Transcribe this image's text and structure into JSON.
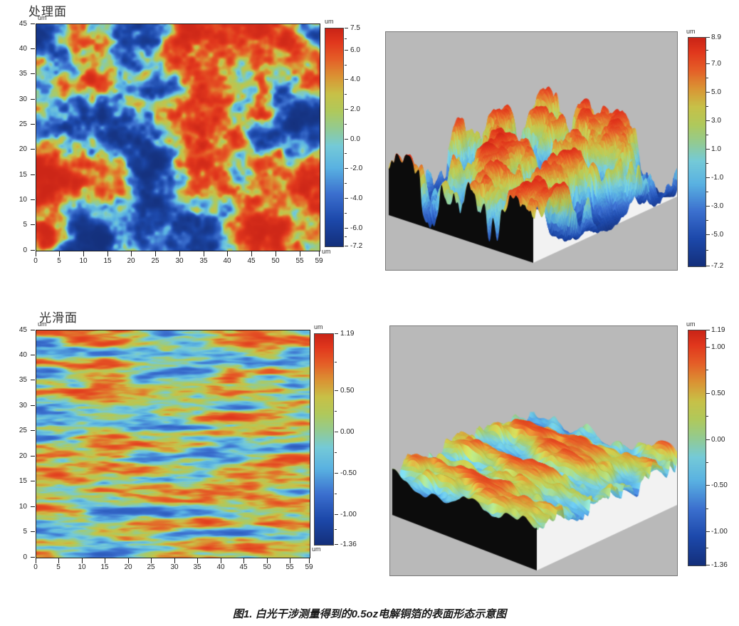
{
  "figure": {
    "caption": "图1. 白光干涉测量得到的0.5oz电解铜箔的表面形态示意图"
  },
  "labels": {
    "treated": "处理面",
    "smooth": "光滑面"
  },
  "units": {
    "um": "um"
  },
  "palette": {
    "stops": [
      {
        "t": 0.0,
        "c": "#14307c"
      },
      {
        "t": 0.12,
        "c": "#1d49ab"
      },
      {
        "t": 0.24,
        "c": "#3c70cf"
      },
      {
        "t": 0.36,
        "c": "#5ab2e2"
      },
      {
        "t": 0.46,
        "c": "#75cad8"
      },
      {
        "t": 0.54,
        "c": "#93cb93"
      },
      {
        "t": 0.62,
        "c": "#b0c95c"
      },
      {
        "t": 0.7,
        "c": "#c8c148"
      },
      {
        "t": 0.78,
        "c": "#db9434"
      },
      {
        "t": 0.86,
        "c": "#e55f28"
      },
      {
        "t": 0.94,
        "c": "#e1371d"
      },
      {
        "t": 1.0,
        "c": "#cb2517"
      }
    ],
    "panel_background": "#b9b9b9",
    "block_front_face": "#0c0c0c",
    "block_side_face": "#f2f2f2"
  },
  "axes_2d": {
    "x_tick_labels": [
      "0",
      "5",
      "10",
      "15",
      "20",
      "25",
      "30",
      "35",
      "40",
      "45",
      "50",
      "55",
      "59"
    ],
    "y_tick_labels": [
      "45",
      "40",
      "35",
      "30",
      "25",
      "20",
      "15",
      "10",
      "5",
      "0"
    ],
    "x_max": 59,
    "y_max": 45
  },
  "colorbars": {
    "treated_2d": {
      "unit": "um",
      "max": 7.5,
      "min": -7.2,
      "labels": [
        "7.5",
        "6.0",
        "4.0",
        "2.0",
        "0.0",
        "-2.0",
        "-4.0",
        "-6.0",
        "-7.2"
      ]
    },
    "treated_3d": {
      "unit": "um",
      "max": 8.9,
      "min": -7.2,
      "labels": [
        "8.9",
        "7.0",
        "5.0",
        "3.0",
        "1.0",
        "-1.0",
        "-3.0",
        "-5.0",
        "-7.2"
      ]
    },
    "smooth_2d": {
      "unit": "um",
      "max": 1.19,
      "min": -1.36,
      "labels": [
        "1.19",
        "0.50",
        "0.00",
        "-0.50",
        "-1.00",
        "-1.36"
      ]
    },
    "smooth_3d": {
      "unit": "um",
      "max": 1.19,
      "min": -1.36,
      "labels": [
        "1.19",
        "1.00",
        "0.50",
        "0.00",
        "-0.50",
        "-1.00",
        "-1.36"
      ]
    }
  },
  "chart_data": [
    {
      "id": "treated-2d-heightmap",
      "type": "heatmap",
      "title": "处理面",
      "x_unit": "um",
      "y_unit": "um",
      "z_unit": "um",
      "x_range": [
        0,
        59
      ],
      "y_range": [
        0,
        45
      ],
      "z_range": [
        -7.2,
        7.5
      ],
      "x_ticks": [
        0,
        5,
        10,
        15,
        20,
        25,
        30,
        35,
        40,
        45,
        50,
        55,
        59
      ],
      "y_ticks": [
        0,
        5,
        10,
        15,
        20,
        25,
        30,
        35,
        40,
        45
      ],
      "colorbar_ticks": [
        7.5,
        6.0,
        4.0,
        2.0,
        0.0,
        -2.0,
        -4.0,
        -6.0,
        -7.2
      ],
      "appearance": "isotropic mottled topography: flat red plateaus around +4..+7.5 um ringed by yellow-green, over cyan mid-levels and deep blue pits of -2..-7 um"
    },
    {
      "id": "treated-3d-surface",
      "type": "surface",
      "z_unit": "um",
      "z_range": [
        -7.2,
        8.9
      ],
      "colorbar_ticks": [
        8.9,
        7.0,
        5.0,
        3.0,
        1.0,
        -1.0,
        -3.0,
        -5.0,
        -7.2
      ],
      "appearance": "rough oblique 3D relief with steep red-topped mesas and deep blue valleys; black front cross-section face, white right face, gray background"
    },
    {
      "id": "smooth-2d-heightmap",
      "type": "heatmap",
      "title": "光滑面",
      "x_unit": "um",
      "y_unit": "um",
      "z_unit": "um",
      "x_range": [
        0,
        59
      ],
      "y_range": [
        0,
        45
      ],
      "z_range": [
        -1.36,
        1.19
      ],
      "x_ticks": [
        0,
        5,
        10,
        15,
        20,
        25,
        30,
        35,
        40,
        45,
        50,
        55,
        59
      ],
      "y_ticks": [
        0,
        5,
        10,
        15,
        20,
        25,
        30,
        35,
        40,
        45
      ],
      "colorbar_ticks": [
        1.19,
        0.5,
        0.0,
        -0.5,
        -1.0,
        -1.36
      ],
      "appearance": "horizontally streaked rolled texture: green background with elongated red/orange ridges and dark navy grooves"
    },
    {
      "id": "smooth-3d-surface",
      "type": "surface",
      "z_unit": "um",
      "z_range": [
        -1.36,
        1.19
      ],
      "colorbar_ticks": [
        1.19,
        1.0,
        0.5,
        0.0,
        -0.5,
        -1.0,
        -1.36
      ],
      "appearance": "low-relief mostly green surface with orange ridge crests and sparse blue pits; black front cross-section face, white right face, gray background"
    }
  ]
}
